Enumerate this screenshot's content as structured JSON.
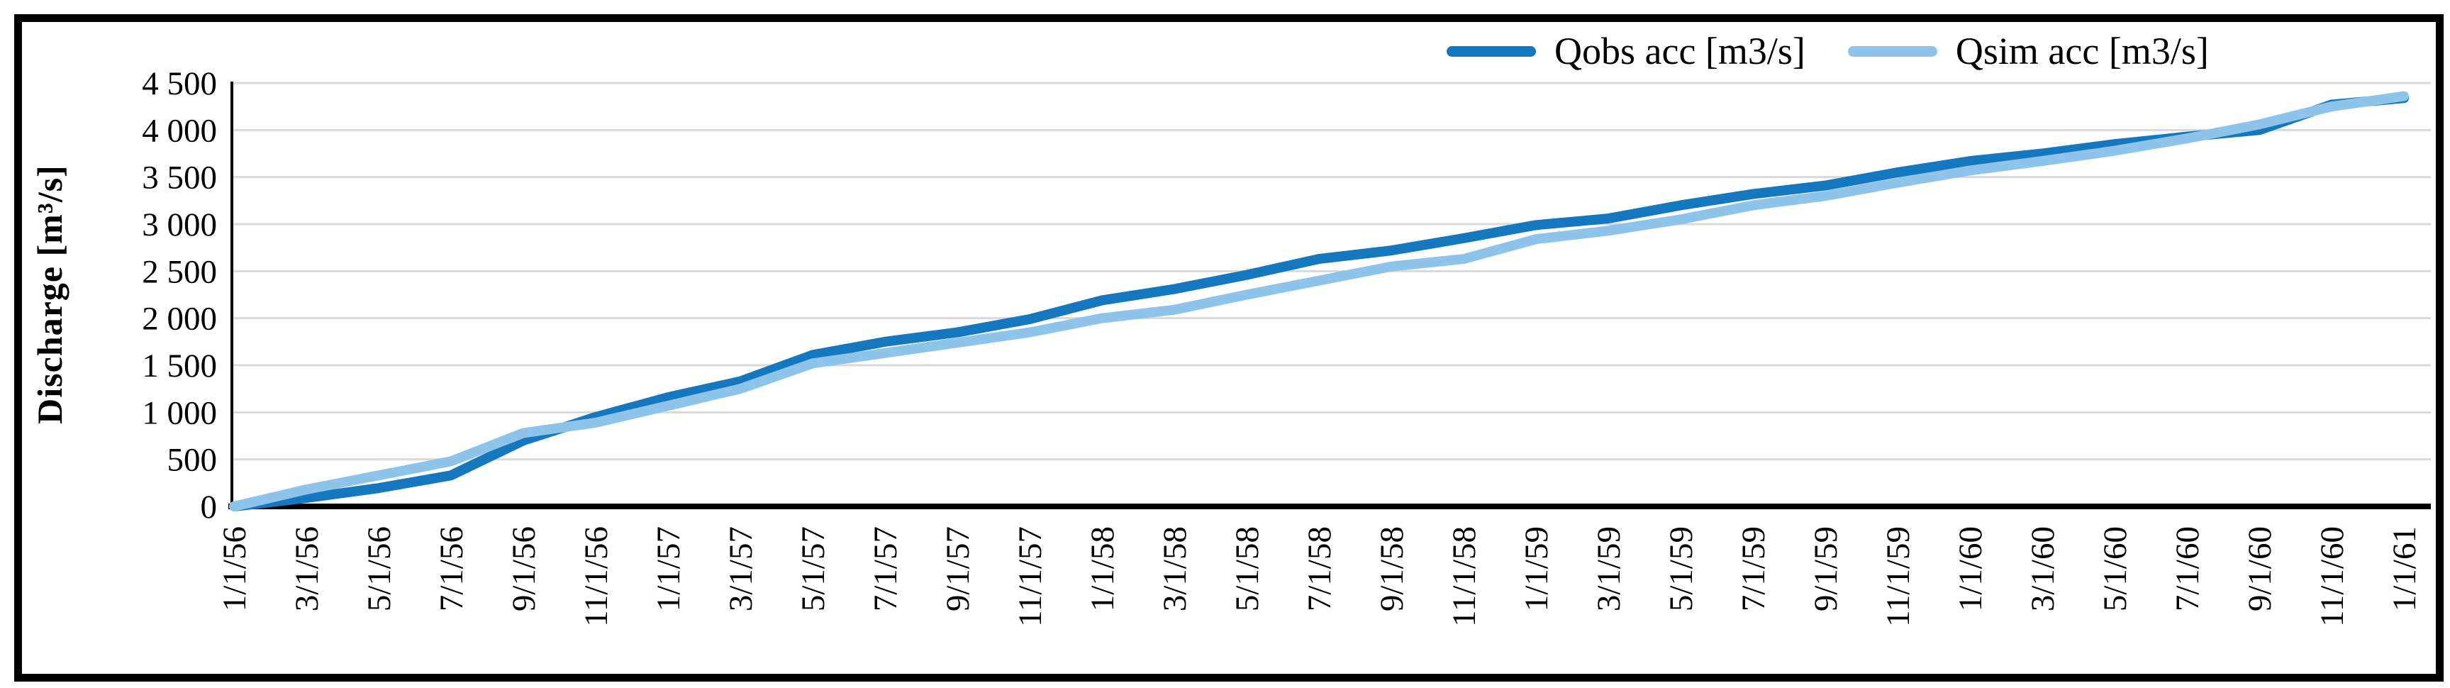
{
  "figure": {
    "background_color": "#FFFFFF",
    "border_color": "#000000"
  },
  "chart_data": {
    "type": "line",
    "title": "",
    "xlabel": "",
    "ylabel": "Discharge [m³/s]",
    "ylim": [
      0,
      4500
    ],
    "y_tick_step": 500,
    "y_tick_labels": [
      "0",
      "500",
      "1 000",
      "1 500",
      "2 000",
      "2 500",
      "3 000",
      "3 500",
      "4 000",
      "4 500"
    ],
    "grid": true,
    "gridline_color": "#D9D9D9",
    "axis_color": "#000000",
    "legend_position": "top-right",
    "x": [
      "1/1/56",
      "3/1/56",
      "5/1/56",
      "7/1/56",
      "9/1/56",
      "11/1/56",
      "1/1/57",
      "3/1/57",
      "5/1/57",
      "7/1/57",
      "9/1/57",
      "11/1/57",
      "1/1/58",
      "3/1/58",
      "5/1/58",
      "7/1/58",
      "9/1/58",
      "11/1/58",
      "1/1/59",
      "3/1/59",
      "5/1/59",
      "7/1/59",
      "9/1/59",
      "11/1/59",
      "1/1/60",
      "3/1/60",
      "5/1/60",
      "7/1/60",
      "9/1/60",
      "11/1/60",
      "1/1/61"
    ],
    "series": [
      {
        "name": "Qobs acc [m3/s]",
        "color": "#1577BD",
        "values": [
          0,
          90,
          195,
          330,
          700,
          950,
          1160,
          1330,
          1610,
          1750,
          1850,
          1990,
          2190,
          2310,
          2460,
          2630,
          2720,
          2850,
          2990,
          3060,
          3200,
          3320,
          3410,
          3550,
          3670,
          3750,
          3850,
          3930,
          4000,
          4270,
          4340
        ]
      },
      {
        "name": "Qsim acc [m3/s]",
        "color": "#8EC4E9",
        "values": [
          0,
          180,
          330,
          480,
          780,
          890,
          1070,
          1250,
          1520,
          1630,
          1740,
          1850,
          2000,
          2090,
          2250,
          2400,
          2550,
          2630,
          2840,
          2930,
          3050,
          3200,
          3300,
          3440,
          3570,
          3670,
          3780,
          3910,
          4060,
          4250,
          4360
        ]
      }
    ]
  }
}
